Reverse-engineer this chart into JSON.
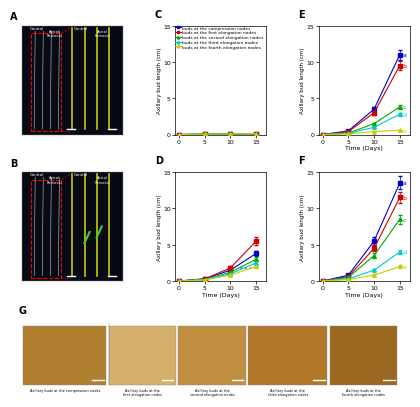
{
  "time_points": [
    0,
    5,
    10,
    15
  ],
  "legend_labels": [
    "buds at the compression nodes",
    "buds at the first elongation nodes",
    "buds at the second elongation nodes",
    "buds at the third elongation nodes",
    "buds at the fourth elongation nodes"
  ],
  "colors": [
    "#0000cc",
    "#cc0000",
    "#00aa00",
    "#00cccc",
    "#cccc00"
  ],
  "markers": [
    "s",
    "s",
    "^",
    "^",
    "^"
  ],
  "panel_C": {
    "title": "C",
    "data": [
      [
        0,
        0.05,
        0.08,
        0.12
      ],
      [
        0,
        0.05,
        0.08,
        0.12
      ],
      [
        0,
        0.05,
        0.08,
        0.12
      ],
      [
        0,
        0.05,
        0.08,
        0.12
      ],
      [
        0,
        0.05,
        0.08,
        0.12
      ]
    ],
    "errors": [
      [
        0,
        0.01,
        0.01,
        0.02
      ],
      [
        0,
        0.01,
        0.01,
        0.02
      ],
      [
        0,
        0.01,
        0.01,
        0.02
      ],
      [
        0,
        0.01,
        0.01,
        0.02
      ],
      [
        0,
        0.01,
        0.01,
        0.02
      ]
    ],
    "ylim": [
      0,
      15
    ],
    "yticks": [
      0,
      5,
      10,
      15
    ],
    "ylabel": "Axillary bud length (cm)"
  },
  "panel_D": {
    "title": "D",
    "data": [
      [
        0,
        0.3,
        1.5,
        3.8
      ],
      [
        0,
        0.3,
        1.8,
        5.5
      ],
      [
        0,
        0.2,
        1.2,
        3.0
      ],
      [
        0,
        0.2,
        1.0,
        2.5
      ],
      [
        0,
        0.15,
        0.8,
        2.0
      ]
    ],
    "errors": [
      [
        0,
        0.05,
        0.15,
        0.3
      ],
      [
        0,
        0.05,
        0.2,
        0.5
      ],
      [
        0,
        0.05,
        0.12,
        0.25
      ],
      [
        0,
        0.04,
        0.1,
        0.2
      ],
      [
        0,
        0.04,
        0.1,
        0.18
      ]
    ],
    "letters": [
      "*",
      "*",
      "*",
      "*",
      "*"
    ],
    "ylim": [
      0,
      15
    ],
    "yticks": [
      0,
      5,
      10,
      15
    ],
    "ylabel": "Axillary bud length (cm)"
  },
  "panel_E": {
    "title": "E",
    "data": [
      [
        0,
        0.5,
        3.5,
        11.0
      ],
      [
        0,
        0.4,
        3.0,
        9.5
      ],
      [
        0,
        0.2,
        1.5,
        3.8
      ],
      [
        0,
        0.15,
        1.0,
        2.8
      ],
      [
        0,
        0.08,
        0.4,
        0.6
      ]
    ],
    "errors": [
      [
        0,
        0.08,
        0.35,
        0.7
      ],
      [
        0,
        0.07,
        0.3,
        0.6
      ],
      [
        0,
        0.04,
        0.15,
        0.3
      ],
      [
        0,
        0.03,
        0.1,
        0.2
      ],
      [
        0,
        0.02,
        0.05,
        0.08
      ]
    ],
    "letters": [
      "a",
      "b",
      "c",
      "d",
      "e"
    ],
    "ylim": [
      0,
      15
    ],
    "yticks": [
      0,
      5,
      10,
      15
    ],
    "ylabel": "Axillary bud length (cm)"
  },
  "panel_F": {
    "title": "F",
    "data": [
      [
        0,
        0.8,
        5.5,
        13.5
      ],
      [
        0,
        0.6,
        4.5,
        11.5
      ],
      [
        0,
        0.5,
        3.5,
        8.5
      ],
      [
        0,
        0.3,
        1.5,
        4.0
      ],
      [
        0,
        0.2,
        0.8,
        2.0
      ]
    ],
    "errors": [
      [
        0,
        0.12,
        0.5,
        0.9
      ],
      [
        0,
        0.1,
        0.4,
        0.8
      ],
      [
        0,
        0.08,
        0.35,
        0.6
      ],
      [
        0,
        0.05,
        0.15,
        0.3
      ],
      [
        0,
        0.04,
        0.1,
        0.2
      ]
    ],
    "letters": [
      "a",
      "b",
      "c",
      "d",
      "e"
    ],
    "ylim": [
      0,
      15
    ],
    "yticks": [
      0,
      5,
      10,
      15
    ],
    "ylabel": "Axillary bud length (cm)"
  },
  "xlabel": "Time (Days)",
  "panel_A_label": "A",
  "panel_B_label": "B",
  "panel_G_label": "G",
  "panel_G_photos": [
    "Axillary buds at the compression nodes",
    "Axillary buds at the\nfirst elongation nodes",
    "Axillary buds at the\nsecond elongation nodes",
    "Axillary buds at the\nthird elongation nodes",
    "Axillary buds at the\nfourth elongation nodes"
  ]
}
